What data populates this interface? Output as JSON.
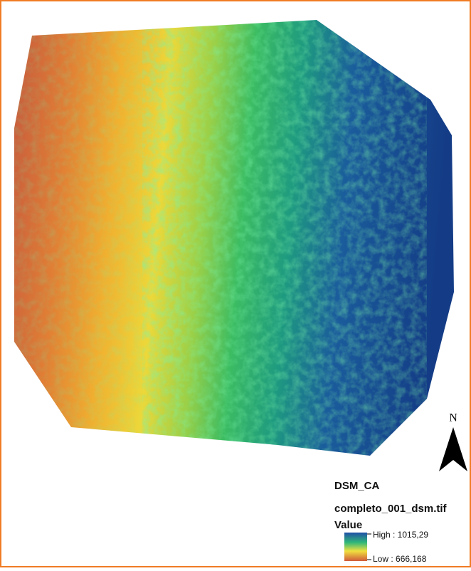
{
  "north_arrow": {
    "label": "N"
  },
  "legend": {
    "layer": "DSM_CA",
    "file": "completo_001_dsm.tif",
    "field": "Value",
    "high_label": "High : 1015,29",
    "low_label": "Low : 666,168"
  }
}
